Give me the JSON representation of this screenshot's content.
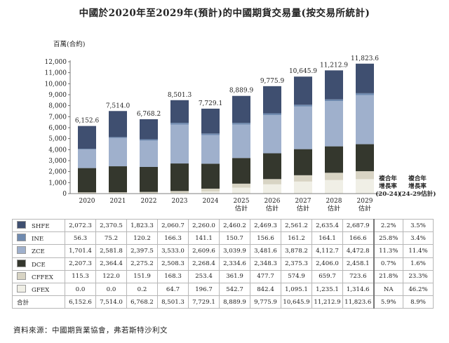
{
  "title": "中國於2020年至2029年(預計)的中國期貨交易量(按交易所統計)",
  "source": "資料來源：中國期貨業協會，弗若斯特沙利文",
  "colors": {
    "SHFE": "#3f4f70",
    "INE": "#6f8aaf",
    "ZCE": "#9fb0cc",
    "DCE": "#34372d",
    "CFFEX": "#d8d4c4",
    "GFEX": "#f0efe6"
  },
  "chart_data": {
    "type": "bar",
    "stacked": true,
    "ylabel": "百萬(合約)",
    "ylim": [
      0,
      12000
    ],
    "yticks": [
      "0",
      "1,000",
      "2,000",
      "3,000",
      "4,000",
      "5,000",
      "6,000",
      "7,000",
      "8,000",
      "9,000",
      "10,000",
      "11,000",
      "12,000"
    ],
    "categories": [
      {
        "year": "2020",
        "note": ""
      },
      {
        "year": "2021",
        "note": ""
      },
      {
        "year": "2022",
        "note": ""
      },
      {
        "year": "2023",
        "note": ""
      },
      {
        "year": "2024",
        "note": ""
      },
      {
        "year": "2025",
        "note": "估計"
      },
      {
        "year": "2026",
        "note": "估計"
      },
      {
        "year": "2027",
        "note": "估計"
      },
      {
        "year": "2028",
        "note": "估計"
      },
      {
        "year": "2029",
        "note": "估計"
      }
    ],
    "totals": [
      6152.6,
      7514.0,
      6768.2,
      8501.3,
      7729.1,
      8889.9,
      9775.9,
      10645.9,
      11212.9,
      11823.6
    ],
    "total_labels": [
      "6,152.6",
      "7,514.0",
      "6,768.2",
      "8,501.3",
      "7,729.1",
      "8,889.9",
      "9,775.9",
      "10,645.9",
      "11,212.9",
      "11,823.6"
    ],
    "series": [
      {
        "name": "GFEX",
        "values": [
          0.0,
          0.0,
          0.2,
          64.7,
          196.7,
          542.7,
          842.4,
          1095.1,
          1235.1,
          1314.6
        ]
      },
      {
        "name": "CFFEX",
        "values": [
          115.3,
          122.0,
          151.9,
          168.3,
          253.4,
          361.9,
          477.7,
          574.9,
          659.7,
          723.6
        ]
      },
      {
        "name": "DCE",
        "values": [
          2207.3,
          2364.4,
          2275.2,
          2508.3,
          2268.4,
          2334.6,
          2348.3,
          2375.3,
          2406.0,
          2458.1
        ]
      },
      {
        "name": "ZCE",
        "values": [
          1701.4,
          2581.8,
          2397.5,
          3533.0,
          2609.6,
          3039.9,
          3481.6,
          3878.2,
          4112.7,
          4472.8
        ]
      },
      {
        "name": "INE",
        "values": [
          56.3,
          75.2,
          120.2,
          166.3,
          141.1,
          150.7,
          156.6,
          161.2,
          164.1,
          166.6
        ]
      },
      {
        "name": "SHFE",
        "values": [
          2072.3,
          2370.5,
          1823.3,
          2060.7,
          2260.0,
          2460.2,
          2469.3,
          2561.2,
          2635.4,
          2687.9
        ]
      }
    ]
  },
  "cagr_headers": {
    "h1": [
      "複合年",
      "增長率",
      "(20-24)"
    ],
    "h2": [
      "複合年",
      "增長率",
      "(24-29估計)"
    ]
  },
  "table": {
    "rows": [
      {
        "name": "SHFE",
        "values": [
          "2,072.3",
          "2,370.5",
          "1,823.3",
          "2,060.7",
          "2,260.0",
          "2,460.2",
          "2,469.3",
          "2,561.2",
          "2,635.4",
          "2,687.9"
        ],
        "cagr1": "2.2%",
        "cagr2": "3.5%"
      },
      {
        "name": "INE",
        "values": [
          "56.3",
          "75.2",
          "120.2",
          "166.3",
          "141.1",
          "150.7",
          "156.6",
          "161.2",
          "164.1",
          "166.6"
        ],
        "cagr1": "25.8%",
        "cagr2": "3.4%"
      },
      {
        "name": "ZCE",
        "values": [
          "1,701.4",
          "2,581.8",
          "2,397.5",
          "3,533.0",
          "2,609.6",
          "3,039.9",
          "3,481.6",
          "3,878.2",
          "4,112.7",
          "4,472.8"
        ],
        "cagr1": "11.3%",
        "cagr2": "11.4%"
      },
      {
        "name": "DCE",
        "values": [
          "2,207.3",
          "2,364.4",
          "2,275.2",
          "2,508.3",
          "2,268.4",
          "2,334.6",
          "2,348.3",
          "2,375.3",
          "2,406.0",
          "2,458.1"
        ],
        "cagr1": "0.7%",
        "cagr2": "1.6%"
      },
      {
        "name": "CFFEX",
        "values": [
          "115.3",
          "122.0",
          "151.9",
          "168.3",
          "253.4",
          "361.9",
          "477.7",
          "574.9",
          "659.7",
          "723.6"
        ],
        "cagr1": "21.8%",
        "cagr2": "23.3%"
      },
      {
        "name": "GFEX",
        "values": [
          "0.0",
          "0.0",
          "0.2",
          "64.7",
          "196.7",
          "542.7",
          "842.4",
          "1,095.1",
          "1,235.1",
          "1,314.6"
        ],
        "cagr1": "NA",
        "cagr2": "46.2%"
      }
    ],
    "total": {
      "name": "合計",
      "values": [
        "6,152.6",
        "7,514.0",
        "6,768.2",
        "8,501.3",
        "7,729.1",
        "8,889.9",
        "9,775.9",
        "10,645.9",
        "11,212.9",
        "11,823.6"
      ],
      "cagr1": "5.9%",
      "cagr2": "8.9%"
    }
  }
}
